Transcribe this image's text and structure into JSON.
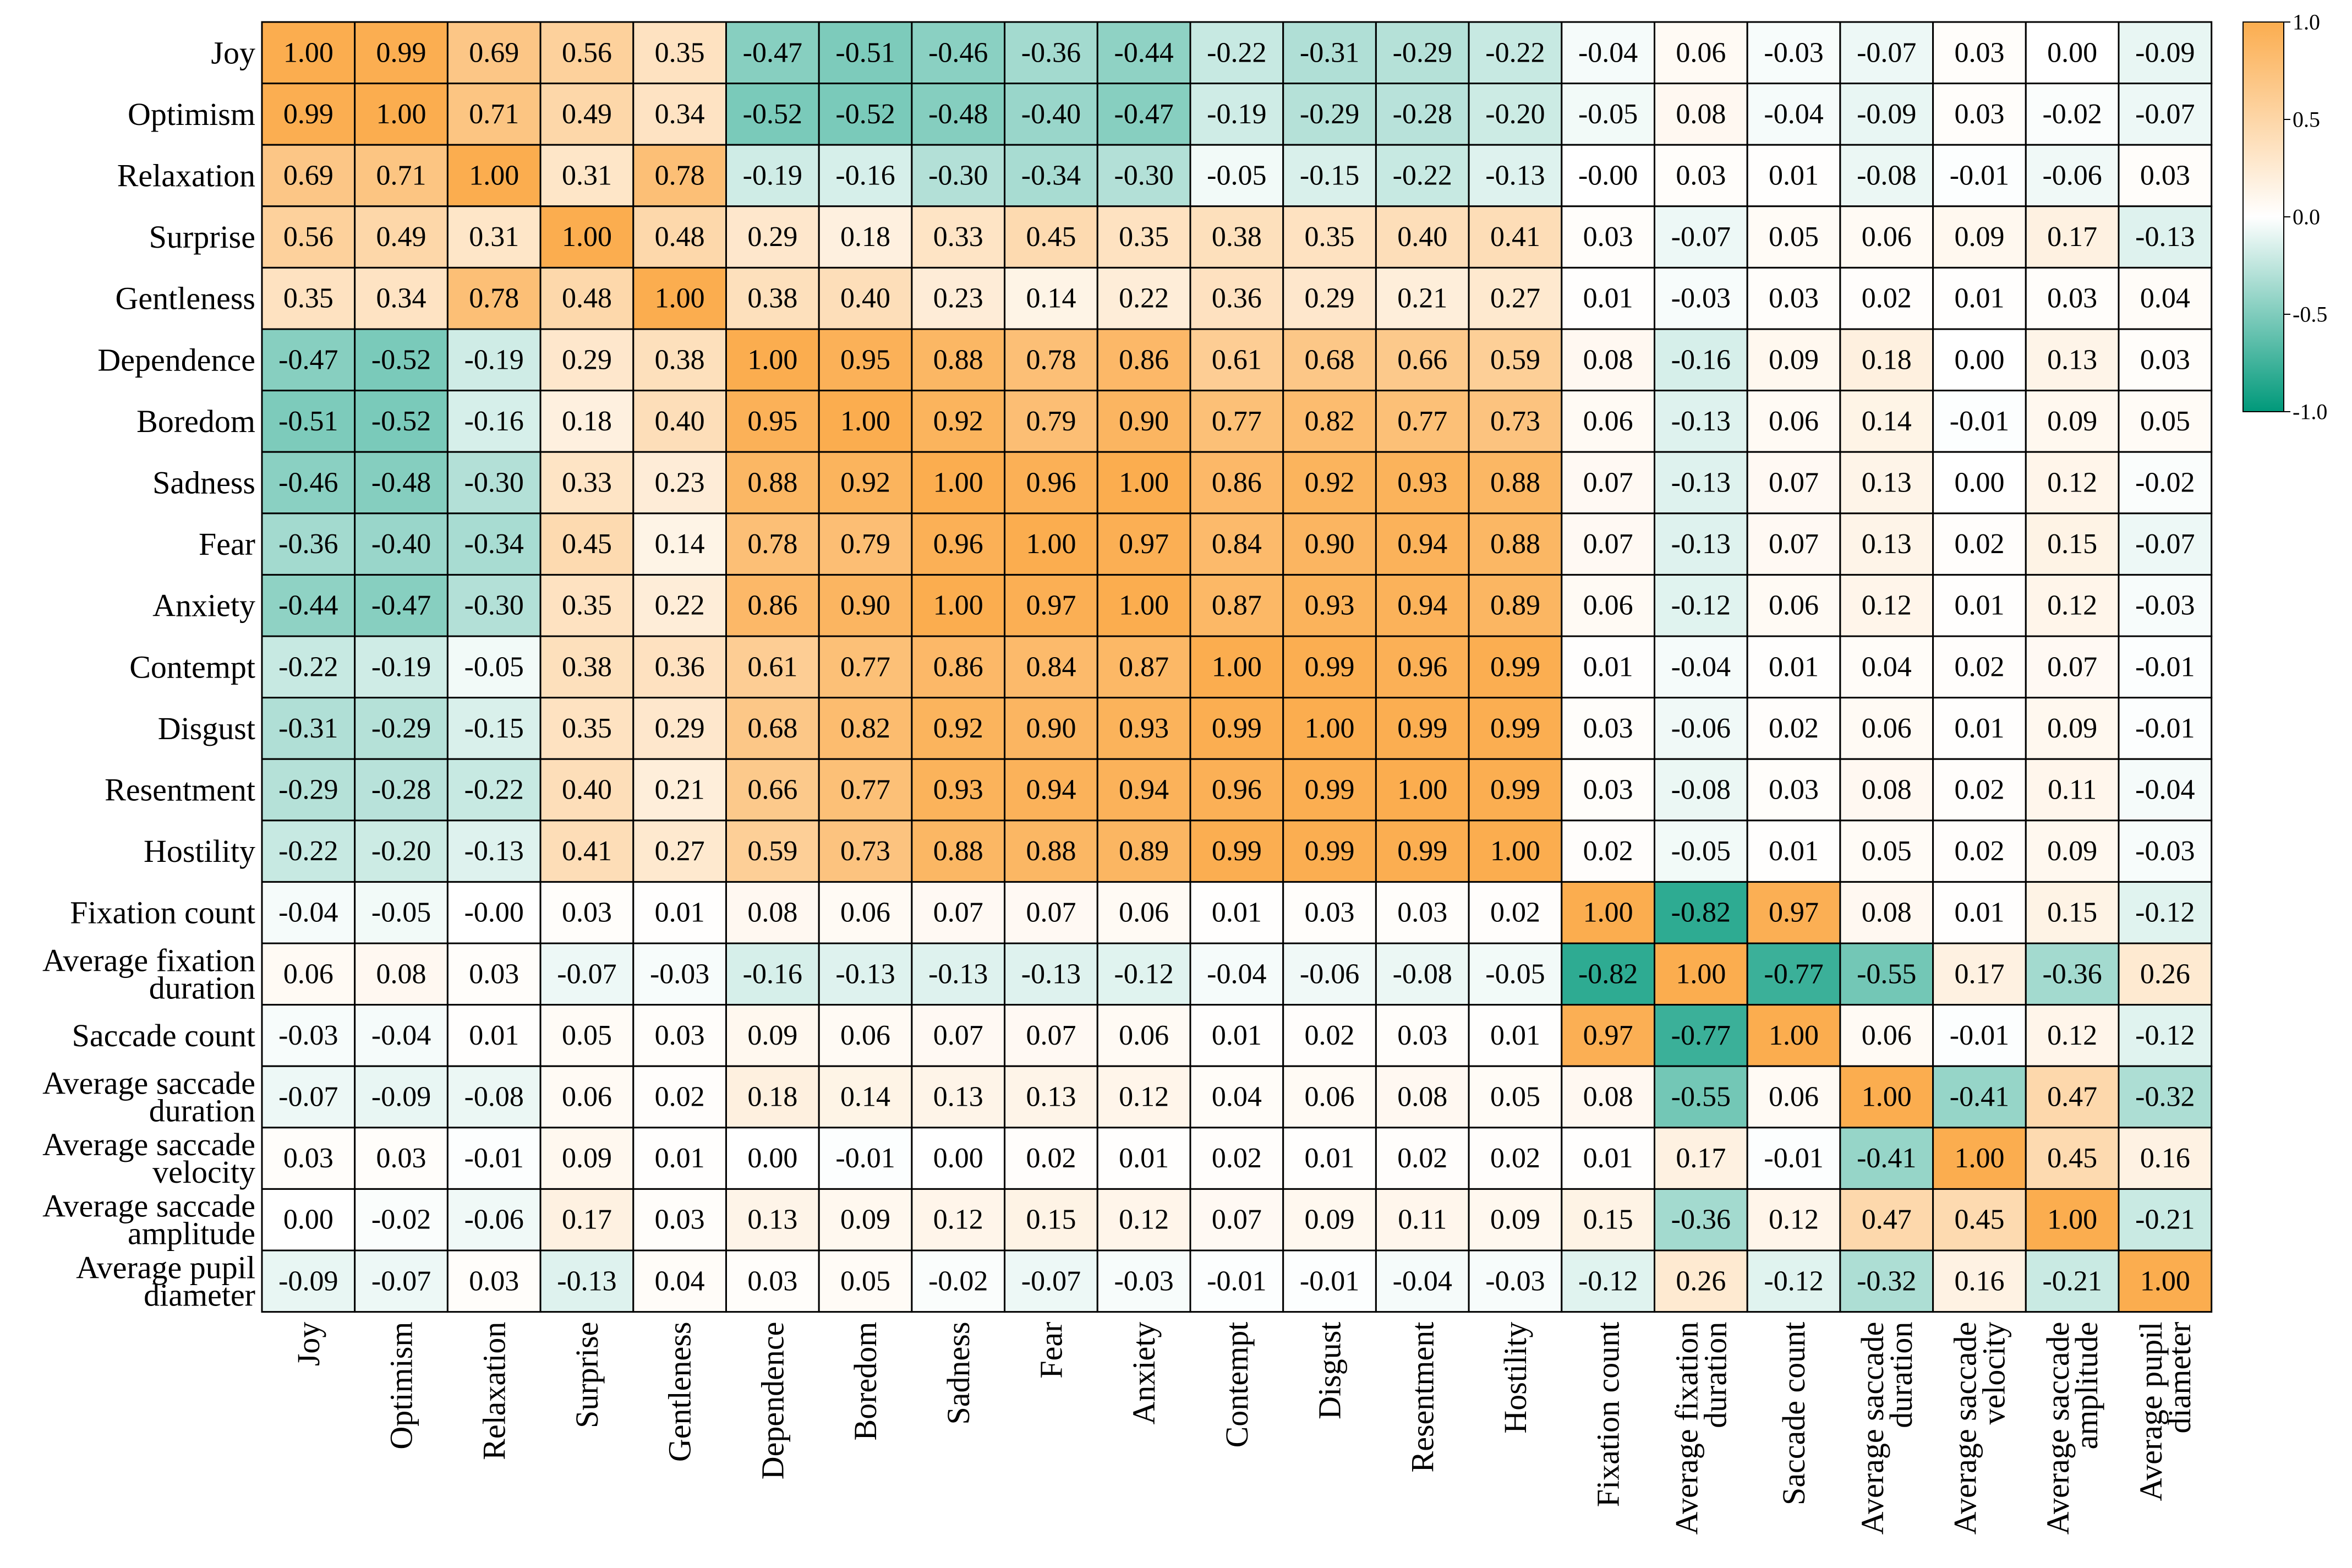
{
  "chart_data": {
    "type": "heatmap",
    "title": "",
    "xlabel": "",
    "ylabel": "",
    "rows": [
      [
        "Joy"
      ],
      [
        "Optimism"
      ],
      [
        "Relaxation"
      ],
      [
        "Surprise"
      ],
      [
        "Gentleness"
      ],
      [
        "Dependence"
      ],
      [
        "Boredom"
      ],
      [
        "Sadness"
      ],
      [
        "Fear"
      ],
      [
        "Anxiety"
      ],
      [
        "Contempt"
      ],
      [
        "Disgust"
      ],
      [
        "Resentment"
      ],
      [
        "Hostility"
      ],
      [
        "Fixation count"
      ],
      [
        "Average fixation",
        "duration"
      ],
      [
        "Saccade count"
      ],
      [
        "Average saccade",
        "duration"
      ],
      [
        "Average saccade",
        "velocity"
      ],
      [
        "Average saccade",
        "amplitude"
      ],
      [
        "Average pupil",
        "diameter"
      ]
    ],
    "columns": [
      [
        "Joy"
      ],
      [
        "Optimism"
      ],
      [
        "Relaxation"
      ],
      [
        "Surprise"
      ],
      [
        "Gentleness"
      ],
      [
        "Dependence"
      ],
      [
        "Boredom"
      ],
      [
        "Sadness"
      ],
      [
        "Fear"
      ],
      [
        "Anxiety"
      ],
      [
        "Contempt"
      ],
      [
        "Disgust"
      ],
      [
        "Resentment"
      ],
      [
        "Hostility"
      ],
      [
        "Fixation count"
      ],
      [
        "Average fixation",
        "duration"
      ],
      [
        "Saccade count"
      ],
      [
        "Average saccade",
        "duration"
      ],
      [
        "Average saccade",
        "velocity"
      ],
      [
        "Average saccade",
        "amplitude"
      ],
      [
        "Average pupil",
        "diameter"
      ]
    ],
    "values": [
      [
        "1.00",
        "0.99",
        "0.69",
        "0.56",
        "0.35",
        "-0.47",
        "-0.51",
        "-0.46",
        "-0.36",
        "-0.44",
        "-0.22",
        "-0.31",
        "-0.29",
        "-0.22",
        "-0.04",
        "0.06",
        "-0.03",
        "-0.07",
        "0.03",
        "0.00",
        "-0.09"
      ],
      [
        "0.99",
        "1.00",
        "0.71",
        "0.49",
        "0.34",
        "-0.52",
        "-0.52",
        "-0.48",
        "-0.40",
        "-0.47",
        "-0.19",
        "-0.29",
        "-0.28",
        "-0.20",
        "-0.05",
        "0.08",
        "-0.04",
        "-0.09",
        "0.03",
        "-0.02",
        "-0.07"
      ],
      [
        "0.69",
        "0.71",
        "1.00",
        "0.31",
        "0.78",
        "-0.19",
        "-0.16",
        "-0.30",
        "-0.34",
        "-0.30",
        "-0.05",
        "-0.15",
        "-0.22",
        "-0.13",
        "-0.00",
        "0.03",
        "0.01",
        "-0.08",
        "-0.01",
        "-0.06",
        "0.03"
      ],
      [
        "0.56",
        "0.49",
        "0.31",
        "1.00",
        "0.48",
        "0.29",
        "0.18",
        "0.33",
        "0.45",
        "0.35",
        "0.38",
        "0.35",
        "0.40",
        "0.41",
        "0.03",
        "-0.07",
        "0.05",
        "0.06",
        "0.09",
        "0.17",
        "-0.13"
      ],
      [
        "0.35",
        "0.34",
        "0.78",
        "0.48",
        "1.00",
        "0.38",
        "0.40",
        "0.23",
        "0.14",
        "0.22",
        "0.36",
        "0.29",
        "0.21",
        "0.27",
        "0.01",
        "-0.03",
        "0.03",
        "0.02",
        "0.01",
        "0.03",
        "0.04"
      ],
      [
        "-0.47",
        "-0.52",
        "-0.19",
        "0.29",
        "0.38",
        "1.00",
        "0.95",
        "0.88",
        "0.78",
        "0.86",
        "0.61",
        "0.68",
        "0.66",
        "0.59",
        "0.08",
        "-0.16",
        "0.09",
        "0.18",
        "0.00",
        "0.13",
        "0.03"
      ],
      [
        "-0.51",
        "-0.52",
        "-0.16",
        "0.18",
        "0.40",
        "0.95",
        "1.00",
        "0.92",
        "0.79",
        "0.90",
        "0.77",
        "0.82",
        "0.77",
        "0.73",
        "0.06",
        "-0.13",
        "0.06",
        "0.14",
        "-0.01",
        "0.09",
        "0.05"
      ],
      [
        "-0.46",
        "-0.48",
        "-0.30",
        "0.33",
        "0.23",
        "0.88",
        "0.92",
        "1.00",
        "0.96",
        "1.00",
        "0.86",
        "0.92",
        "0.93",
        "0.88",
        "0.07",
        "-0.13",
        "0.07",
        "0.13",
        "0.00",
        "0.12",
        "-0.02"
      ],
      [
        "-0.36",
        "-0.40",
        "-0.34",
        "0.45",
        "0.14",
        "0.78",
        "0.79",
        "0.96",
        "1.00",
        "0.97",
        "0.84",
        "0.90",
        "0.94",
        "0.88",
        "0.07",
        "-0.13",
        "0.07",
        "0.13",
        "0.02",
        "0.15",
        "-0.07"
      ],
      [
        "-0.44",
        "-0.47",
        "-0.30",
        "0.35",
        "0.22",
        "0.86",
        "0.90",
        "1.00",
        "0.97",
        "1.00",
        "0.87",
        "0.93",
        "0.94",
        "0.89",
        "0.06",
        "-0.12",
        "0.06",
        "0.12",
        "0.01",
        "0.12",
        "-0.03"
      ],
      [
        "-0.22",
        "-0.19",
        "-0.05",
        "0.38",
        "0.36",
        "0.61",
        "0.77",
        "0.86",
        "0.84",
        "0.87",
        "1.00",
        "0.99",
        "0.96",
        "0.99",
        "0.01",
        "-0.04",
        "0.01",
        "0.04",
        "0.02",
        "0.07",
        "-0.01"
      ],
      [
        "-0.31",
        "-0.29",
        "-0.15",
        "0.35",
        "0.29",
        "0.68",
        "0.82",
        "0.92",
        "0.90",
        "0.93",
        "0.99",
        "1.00",
        "0.99",
        "0.99",
        "0.03",
        "-0.06",
        "0.02",
        "0.06",
        "0.01",
        "0.09",
        "-0.01"
      ],
      [
        "-0.29",
        "-0.28",
        "-0.22",
        "0.40",
        "0.21",
        "0.66",
        "0.77",
        "0.93",
        "0.94",
        "0.94",
        "0.96",
        "0.99",
        "1.00",
        "0.99",
        "0.03",
        "-0.08",
        "0.03",
        "0.08",
        "0.02",
        "0.11",
        "-0.04"
      ],
      [
        "-0.22",
        "-0.20",
        "-0.13",
        "0.41",
        "0.27",
        "0.59",
        "0.73",
        "0.88",
        "0.88",
        "0.89",
        "0.99",
        "0.99",
        "0.99",
        "1.00",
        "0.02",
        "-0.05",
        "0.01",
        "0.05",
        "0.02",
        "0.09",
        "-0.03"
      ],
      [
        "-0.04",
        "-0.05",
        "-0.00",
        "0.03",
        "0.01",
        "0.08",
        "0.06",
        "0.07",
        "0.07",
        "0.06",
        "0.01",
        "0.03",
        "0.03",
        "0.02",
        "1.00",
        "-0.82",
        "0.97",
        "0.08",
        "0.01",
        "0.15",
        "-0.12"
      ],
      [
        "0.06",
        "0.08",
        "0.03",
        "-0.07",
        "-0.03",
        "-0.16",
        "-0.13",
        "-0.13",
        "-0.13",
        "-0.12",
        "-0.04",
        "-0.06",
        "-0.08",
        "-0.05",
        "-0.82",
        "1.00",
        "-0.77",
        "-0.55",
        "0.17",
        "-0.36",
        "0.26"
      ],
      [
        "-0.03",
        "-0.04",
        "0.01",
        "0.05",
        "0.03",
        "0.09",
        "0.06",
        "0.07",
        "0.07",
        "0.06",
        "0.01",
        "0.02",
        "0.03",
        "0.01",
        "0.97",
        "-0.77",
        "1.00",
        "0.06",
        "-0.01",
        "0.12",
        "-0.12"
      ],
      [
        "-0.07",
        "-0.09",
        "-0.08",
        "0.06",
        "0.02",
        "0.18",
        "0.14",
        "0.13",
        "0.13",
        "0.12",
        "0.04",
        "0.06",
        "0.08",
        "0.05",
        "0.08",
        "-0.55",
        "0.06",
        "1.00",
        "-0.41",
        "0.47",
        "-0.32"
      ],
      [
        "0.03",
        "0.03",
        "-0.01",
        "0.09",
        "0.01",
        "0.00",
        "-0.01",
        "0.00",
        "0.02",
        "0.01",
        "0.02",
        "0.01",
        "0.02",
        "0.02",
        "0.01",
        "0.17",
        "-0.01",
        "-0.41",
        "1.00",
        "0.45",
        "0.16"
      ],
      [
        "0.00",
        "-0.02",
        "-0.06",
        "0.17",
        "0.03",
        "0.13",
        "0.09",
        "0.12",
        "0.15",
        "0.12",
        "0.07",
        "0.09",
        "0.11",
        "0.09",
        "0.15",
        "-0.36",
        "0.12",
        "0.47",
        "0.45",
        "1.00",
        "-0.21"
      ],
      [
        "-0.09",
        "-0.07",
        "0.03",
        "-0.13",
        "0.04",
        "0.03",
        "0.05",
        "-0.02",
        "-0.07",
        "-0.03",
        "-0.01",
        "-0.01",
        "-0.04",
        "-0.03",
        "-0.12",
        "0.26",
        "-0.12",
        "-0.32",
        "0.16",
        "-0.21",
        "1.00"
      ]
    ],
    "colorbar": {
      "min": -1.0,
      "max": 1.0,
      "ticks": [
        "1.0",
        "0.5",
        "0.0",
        "-0.5",
        "-1.0"
      ],
      "colors": {
        "negative": "#00997a",
        "zero": "#ffffff",
        "positive": "#fbad4f"
      }
    },
    "grid": true
  }
}
